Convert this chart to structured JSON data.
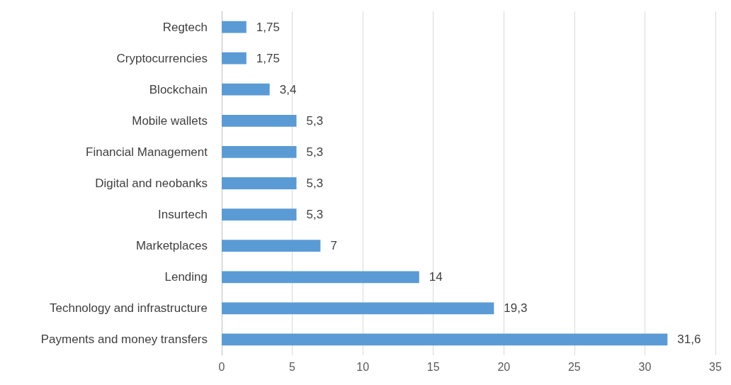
{
  "chart_data": {
    "type": "bar",
    "orientation": "horizontal",
    "categories": [
      "Regtech",
      "Cryptocurrencies",
      "Blockchain",
      "Mobile wallets",
      "Financial Management",
      "Digital and neobanks",
      "Insurtech",
      "Marketplaces",
      "Lending",
      "Technology and infrastructure",
      "Payments and money transfers"
    ],
    "values": [
      1.75,
      1.75,
      3.4,
      5.3,
      5.3,
      5.3,
      5.3,
      7,
      14,
      19.3,
      31.6
    ],
    "value_labels": [
      "1,75",
      "1,75",
      "3,4",
      "5,3",
      "5,3",
      "5,3",
      "5,3",
      "7",
      "14",
      "19,3",
      "31,6"
    ],
    "color": "#5b9bd5",
    "xlim": [
      0,
      35
    ],
    "xticks": [
      0,
      5,
      10,
      15,
      20,
      25,
      30,
      35
    ],
    "grid": "x"
  }
}
